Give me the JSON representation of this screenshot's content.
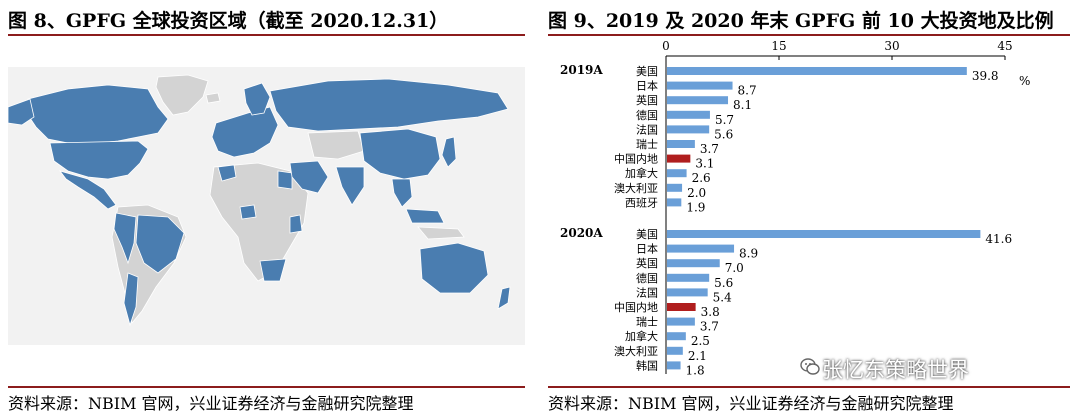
{
  "left_panel": {
    "title": "图 8、GPFG 全球投资区域（截至 2020.12.31）",
    "source": "资料来源：NBIM 官网，兴业证券经济与金融研究院整理",
    "colors": {
      "invested": "#4a7db0",
      "not_invested": "#d3d3d3",
      "background": "#f2f2f2"
    }
  },
  "right_panel": {
    "title": "图 9、2019 及 2020 年末 GPFG 前 10 大投资地及比例",
    "source": "资料来源：NBIM 官网，兴业证券经济与金融研究院整理"
  },
  "watermark": {
    "text": "张忆东策略世界",
    "icon": "wechat-icon"
  },
  "chart_data": {
    "type": "bar",
    "orientation": "horizontal",
    "unit": "%",
    "xlim": [
      0,
      45
    ],
    "xticks": [
      0,
      15,
      30,
      45
    ],
    "grid": false,
    "colors": {
      "default": "#6a9fd8",
      "highlight": "#b01e1e"
    },
    "highlight_category": "中国内地",
    "groups": [
      {
        "name": "2019A",
        "categories": [
          "美国",
          "日本",
          "英国",
          "德国",
          "法国",
          "瑞士",
          "中国内地",
          "加拿大",
          "澳大利亚",
          "西班牙"
        ],
        "values": [
          39.8,
          8.7,
          8.1,
          5.7,
          5.6,
          3.7,
          3.1,
          2.6,
          2.0,
          1.9
        ]
      },
      {
        "name": "2020A",
        "categories": [
          "美国",
          "日本",
          "英国",
          "德国",
          "法国",
          "中国内地",
          "瑞士",
          "加拿大",
          "澳大利亚",
          "韩国"
        ],
        "values": [
          41.6,
          8.9,
          7.0,
          5.6,
          5.4,
          3.8,
          3.7,
          2.5,
          2.1,
          1.8
        ]
      }
    ]
  }
}
